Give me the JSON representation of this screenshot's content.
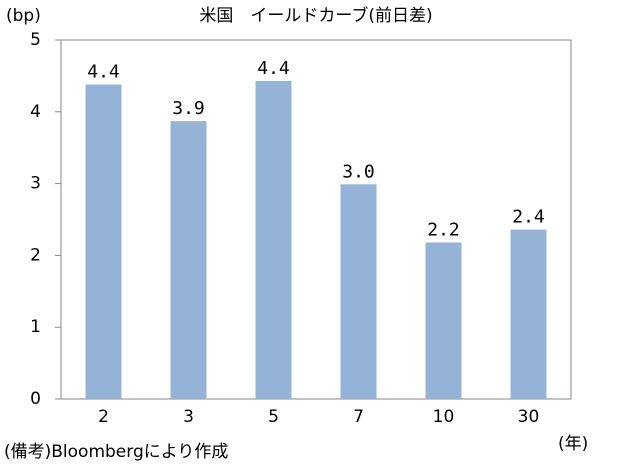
{
  "chart_data": {
    "type": "bar",
    "title": "米国　イールドカーブ(前日差)",
    "y_unit": "(bp)",
    "x_unit": "(年)",
    "note": "(備考)Bloombergにより作成",
    "categories": [
      "2",
      "3",
      "5",
      "7",
      "10",
      "30"
    ],
    "values": [
      4.38,
      3.87,
      4.43,
      2.99,
      2.18,
      2.36
    ],
    "value_labels": [
      "4.4",
      "3.9",
      "4.4",
      "3.0",
      "2.2",
      "2.4"
    ],
    "color": "#95b3d7",
    "ylim": [
      0,
      5
    ],
    "yticks": [
      0,
      1,
      2,
      3,
      4,
      5
    ],
    "grid": false
  }
}
